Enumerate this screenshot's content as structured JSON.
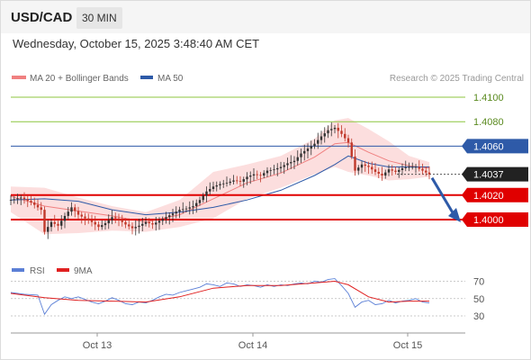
{
  "header": {
    "symbol": "USD/CAD",
    "interval": "30 MIN",
    "datetime": "Wednesday, October 15, 2025 3:48:40 AM CET"
  },
  "legend": {
    "ma20_label": "MA 20 + Bollinger Bands",
    "ma50_label": "MA 50",
    "ma20_color": "#f08080",
    "ma50_color": "#2e5aa8",
    "copyright": "Research © 2025 Trading Central"
  },
  "rsi_legend": {
    "rsi_label": "RSI",
    "ma9_label": "9MA",
    "rsi_color": "#5b7fd6",
    "ma9_color": "#e02020"
  },
  "colors": {
    "green_level": "#8cc63f",
    "blue_level": "#2e5aa8",
    "red_level": "#e00000",
    "up_candle": "#333333",
    "down_candle": "#c0392b",
    "bollinger_fill": "#fbd3d3",
    "arrow": "#2e5aa8"
  },
  "chart_data": {
    "type": "candlestick",
    "title": "",
    "x_labels": [
      "Oct 13",
      "Oct 14",
      "Oct 15"
    ],
    "y_range": [
      1.397,
      1.411
    ],
    "price_labels": [
      {
        "value": 1.41,
        "text": "1.4100",
        "style": "green"
      },
      {
        "value": 1.408,
        "text": "1.4080",
        "style": "green"
      },
      {
        "value": 1.406,
        "text": "1.4060",
        "style": "blue"
      },
      {
        "value": 1.4037,
        "text": "1.4037",
        "style": "current"
      },
      {
        "value": 1.402,
        "text": "1.4020",
        "style": "red"
      },
      {
        "value": 1.4,
        "text": "1.4000",
        "style": "red"
      }
    ],
    "forecast": {
      "from": 1.4037,
      "to": 1.4
    },
    "close_points": [
      [
        0,
        1.4016
      ],
      [
        3,
        1.4018
      ],
      [
        6,
        1.4014
      ],
      [
        9,
        1.4008
      ],
      [
        10,
        1.399
      ],
      [
        12,
        1.3998
      ],
      [
        14,
        1.3995
      ],
      [
        16,
        1.4003
      ],
      [
        18,
        1.401
      ],
      [
        20,
        1.4004
      ],
      [
        22,
        1.4001
      ],
      [
        24,
        1.3998
      ],
      [
        26,
        1.3994
      ],
      [
        28,
        1.3997
      ],
      [
        30,
        1.4002
      ],
      [
        32,
        1.4
      ],
      [
        34,
        1.3996
      ],
      [
        36,
        1.3993
      ],
      [
        38,
        1.3995
      ],
      [
        40,
        1.3998
      ],
      [
        42,
        1.3996
      ],
      [
        44,
        1.3999
      ],
      [
        46,
        1.4002
      ],
      [
        48,
        1.4005
      ],
      [
        50,
        1.4008
      ],
      [
        52,
        1.4009
      ],
      [
        54,
        1.4011
      ],
      [
        56,
        1.4016
      ],
      [
        58,
        1.4023
      ],
      [
        60,
        1.4027
      ],
      [
        62,
        1.4029
      ],
      [
        64,
        1.403
      ],
      [
        66,
        1.4032
      ],
      [
        68,
        1.4031
      ],
      [
        70,
        1.4035
      ],
      [
        72,
        1.4037
      ],
      [
        74,
        1.4036
      ],
      [
        76,
        1.404
      ],
      [
        78,
        1.4041
      ],
      [
        80,
        1.4043
      ],
      [
        82,
        1.4046
      ],
      [
        84,
        1.4048
      ],
      [
        86,
        1.4054
      ],
      [
        88,
        1.4058
      ],
      [
        90,
        1.4062
      ],
      [
        92,
        1.4068
      ],
      [
        94,
        1.4073
      ],
      [
        96,
        1.4075
      ],
      [
        98,
        1.407
      ],
      [
        100,
        1.4063
      ],
      [
        102,
        1.404
      ],
      [
        104,
        1.4045
      ],
      [
        106,
        1.4043
      ],
      [
        108,
        1.4039
      ],
      [
        110,
        1.4036
      ],
      [
        112,
        1.4041
      ],
      [
        114,
        1.4039
      ],
      [
        116,
        1.4042
      ],
      [
        118,
        1.4043
      ],
      [
        120,
        1.4043
      ],
      [
        122,
        1.404
      ],
      [
        124,
        1.4037
      ]
    ],
    "ma20": [
      [
        0,
        1.4019
      ],
      [
        10,
        1.4011
      ],
      [
        20,
        1.4007
      ],
      [
        30,
        1.4003
      ],
      [
        40,
        1.3998
      ],
      [
        50,
        1.4004
      ],
      [
        60,
        1.4017
      ],
      [
        70,
        1.403
      ],
      [
        80,
        1.4038
      ],
      [
        90,
        1.4051
      ],
      [
        96,
        1.4062
      ],
      [
        100,
        1.4063
      ],
      [
        106,
        1.4055
      ],
      [
        112,
        1.4048
      ],
      [
        118,
        1.4044
      ],
      [
        124,
        1.4042
      ]
    ],
    "bb_upper": [
      [
        0,
        1.4027
      ],
      [
        10,
        1.4026
      ],
      [
        20,
        1.4018
      ],
      [
        30,
        1.4011
      ],
      [
        40,
        1.4006
      ],
      [
        50,
        1.4016
      ],
      [
        60,
        1.4039
      ],
      [
        70,
        1.4045
      ],
      [
        80,
        1.4052
      ],
      [
        90,
        1.4066
      ],
      [
        96,
        1.4081
      ],
      [
        100,
        1.4083
      ],
      [
        106,
        1.4074
      ],
      [
        112,
        1.4064
      ],
      [
        118,
        1.4052
      ],
      [
        124,
        1.4047
      ]
    ],
    "bb_lower": [
      [
        0,
        1.4006
      ],
      [
        10,
        1.3988
      ],
      [
        20,
        1.3989
      ],
      [
        30,
        1.3991
      ],
      [
        40,
        1.399
      ],
      [
        50,
        1.3994
      ],
      [
        60,
        1.4001
      ],
      [
        70,
        1.4017
      ],
      [
        80,
        1.4026
      ],
      [
        90,
        1.4037
      ],
      [
        96,
        1.4043
      ],
      [
        100,
        1.4039
      ],
      [
        106,
        1.4036
      ],
      [
        112,
        1.4032
      ],
      [
        118,
        1.4033
      ],
      [
        124,
        1.4035
      ]
    ],
    "ma50": [
      [
        0,
        1.4016
      ],
      [
        10,
        1.4017
      ],
      [
        20,
        1.4015
      ],
      [
        30,
        1.4008
      ],
      [
        40,
        1.4004
      ],
      [
        50,
        1.4006
      ],
      [
        60,
        1.401
      ],
      [
        70,
        1.4016
      ],
      [
        80,
        1.4024
      ],
      [
        90,
        1.4036
      ],
      [
        96,
        1.4045
      ],
      [
        100,
        1.4052
      ],
      [
        106,
        1.4046
      ],
      [
        112,
        1.4043
      ],
      [
        118,
        1.4043
      ],
      [
        124,
        1.4043
      ]
    ],
    "rsi_range": [
      20,
      80
    ],
    "rsi_levels": [
      70,
      50,
      30
    ],
    "rsi": [
      [
        0,
        57
      ],
      [
        4,
        55
      ],
      [
        8,
        54
      ],
      [
        10,
        32
      ],
      [
        12,
        43
      ],
      [
        14,
        48
      ],
      [
        16,
        52
      ],
      [
        18,
        50
      ],
      [
        20,
        52
      ],
      [
        22,
        49
      ],
      [
        24,
        46
      ],
      [
        26,
        44
      ],
      [
        28,
        47
      ],
      [
        30,
        51
      ],
      [
        32,
        48
      ],
      [
        34,
        44
      ],
      [
        36,
        43
      ],
      [
        38,
        46
      ],
      [
        40,
        45
      ],
      [
        42,
        48
      ],
      [
        44,
        52
      ],
      [
        46,
        55
      ],
      [
        48,
        54
      ],
      [
        50,
        57
      ],
      [
        52,
        59
      ],
      [
        54,
        61
      ],
      [
        56,
        63
      ],
      [
        58,
        67
      ],
      [
        60,
        66
      ],
      [
        62,
        64
      ],
      [
        64,
        68
      ],
      [
        66,
        67
      ],
      [
        68,
        64
      ],
      [
        70,
        66
      ],
      [
        72,
        65
      ],
      [
        74,
        63
      ],
      [
        76,
        66
      ],
      [
        78,
        64
      ],
      [
        80,
        66
      ],
      [
        82,
        65
      ],
      [
        84,
        67
      ],
      [
        86,
        68
      ],
      [
        88,
        67
      ],
      [
        90,
        70
      ],
      [
        92,
        69
      ],
      [
        94,
        72
      ],
      [
        96,
        73
      ],
      [
        98,
        65
      ],
      [
        100,
        56
      ],
      [
        102,
        40
      ],
      [
        104,
        46
      ],
      [
        106,
        48
      ],
      [
        108,
        43
      ],
      [
        110,
        44
      ],
      [
        112,
        48
      ],
      [
        114,
        45
      ],
      [
        116,
        47
      ],
      [
        118,
        48
      ],
      [
        120,
        50
      ],
      [
        122,
        46
      ],
      [
        124,
        45
      ]
    ],
    "rsi_ma9": [
      [
        0,
        56
      ],
      [
        10,
        51
      ],
      [
        20,
        48
      ],
      [
        30,
        47
      ],
      [
        40,
        46
      ],
      [
        50,
        52
      ],
      [
        60,
        62
      ],
      [
        70,
        65
      ],
      [
        80,
        65
      ],
      [
        90,
        68
      ],
      [
        96,
        70
      ],
      [
        100,
        66
      ],
      [
        106,
        52
      ],
      [
        112,
        46
      ],
      [
        118,
        47
      ],
      [
        124,
        47
      ]
    ]
  }
}
